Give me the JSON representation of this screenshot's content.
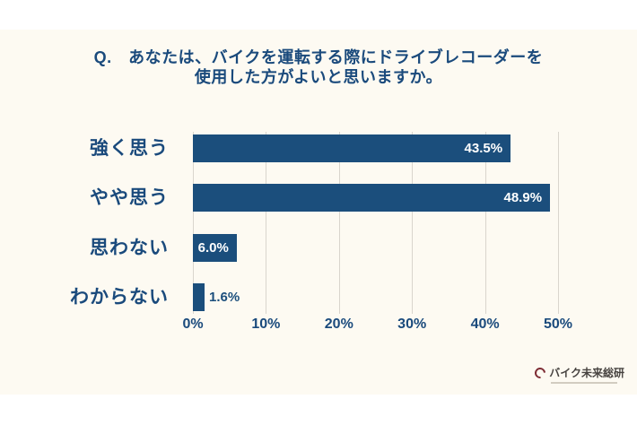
{
  "title": {
    "line1": "Q.　あなたは、バイクを運転する際にドライブレコーダーを",
    "line2": "使用した方がよいと思いますか。"
  },
  "chart_data": {
    "type": "bar",
    "orientation": "horizontal",
    "title": "Q. あなたは、バイクを運転する際にドライブレコーダーを使用した方がよいと思いますか。",
    "categories": [
      "強く思う",
      "やや思う",
      "思わない",
      "わからない"
    ],
    "values": [
      43.5,
      48.9,
      6.0,
      1.6
    ],
    "value_labels": [
      "43.5%",
      "48.9%",
      "6.0%",
      "1.6%"
    ],
    "x_tick_labels": [
      "0%",
      "10%",
      "20%",
      "30%",
      "40%",
      "50%"
    ],
    "x_tick_values": [
      0,
      10,
      20,
      30,
      40,
      50
    ],
    "xlim": [
      0,
      50
    ],
    "grid": true,
    "legend": false,
    "bar_color": "#1b4e7c",
    "grid_color": "#d9d5cd",
    "value_label_color_inside": "#ffffff",
    "value_label_color_outside": "#1b4e7c"
  },
  "footer": {
    "logo_text": "バイク未来総研"
  },
  "colors": {
    "page_background": "#ffffff",
    "slide_background": "#fdfaf2",
    "accent": "#1a4a7c"
  }
}
